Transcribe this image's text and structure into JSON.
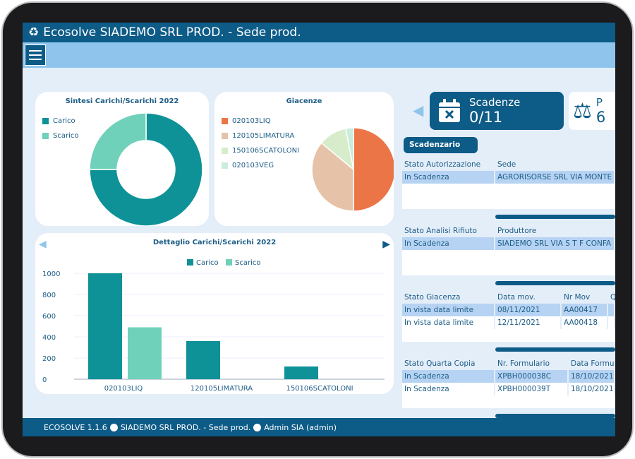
{
  "title": "Ecosolve SIADEMO SRL PROD. - Sede prod.",
  "donut": {
    "title": "Sintesi Carichi/Scarichi 2022",
    "items": [
      {
        "label": "Carico",
        "value": 75,
        "color": "#0e9297"
      },
      {
        "label": "Scarico",
        "value": 25,
        "color": "#6fd1b9"
      }
    ]
  },
  "pie": {
    "title": "Giacenze",
    "items": [
      {
        "label": "020103LIQ",
        "value": 50,
        "color": "#ec7548"
      },
      {
        "label": "120105LIMATURA",
        "value": 36,
        "color": "#e6c3a8"
      },
      {
        "label": "150106SCATOLONI",
        "value": 11,
        "color": "#d6eccb"
      },
      {
        "label": "020103VEG",
        "value": 3,
        "color": "#c9ecdc"
      }
    ]
  },
  "chart_data": {
    "type": "bar",
    "title": "Dettaglio Carichi/Scarichi 2022",
    "categories": [
      "020103LIQ",
      "120105LIMATURA",
      "150106SCATOLONI"
    ],
    "series": [
      {
        "name": "Carico",
        "values": [
          1000,
          360,
          120
        ],
        "color": "#0e9297"
      },
      {
        "name": "Scarico",
        "values": [
          490,
          0,
          0
        ],
        "color": "#6fd1b9"
      }
    ],
    "ylim": [
      0,
      1000
    ],
    "yticks": [
      "0",
      "200",
      "400",
      "600",
      "800",
      "1000"
    ]
  },
  "kpi": {
    "label": "Scadenze",
    "value": "0/11",
    "next_label": "P",
    "next_value": "6"
  },
  "scadenzario": "Scadenzario",
  "tables": [
    {
      "headers": [
        "Stato Autorizzazione",
        "Sede"
      ],
      "rows": [
        [
          "In Scadenza",
          "AGRORISORSE SRL VIA MONTE"
        ]
      ]
    },
    {
      "headers": [
        "Stato Analisi Rifiuto",
        "Produttore"
      ],
      "rows": [
        [
          "In Scadenza",
          "SIADEMO SRL VIA S T F CONFA"
        ]
      ]
    },
    {
      "headers": [
        "Stato Giacenza",
        "Data mov.",
        "Nr Mov",
        "Q"
      ],
      "rows": [
        [
          "In vista data limite",
          "08/11/2021",
          "AA00417",
          ""
        ],
        [
          "In vista data limite",
          "12/11/2021",
          "AA00418",
          ""
        ]
      ]
    },
    {
      "headers": [
        "Stato Quarta Copia",
        "Nr. Formulario",
        "Data Formu"
      ],
      "rows": [
        [
          "In Scadenza",
          "XPBH000038C",
          "18/10/2021"
        ],
        [
          "In Scadenza",
          "XPBH000039T",
          "18/10/2021"
        ]
      ]
    }
  ],
  "footer": {
    "version": "ECOSOLVE 1.1.6",
    "company": "SIADEMO SRL PROD. - Sede prod.",
    "user": "Admin SIA (admin)"
  }
}
